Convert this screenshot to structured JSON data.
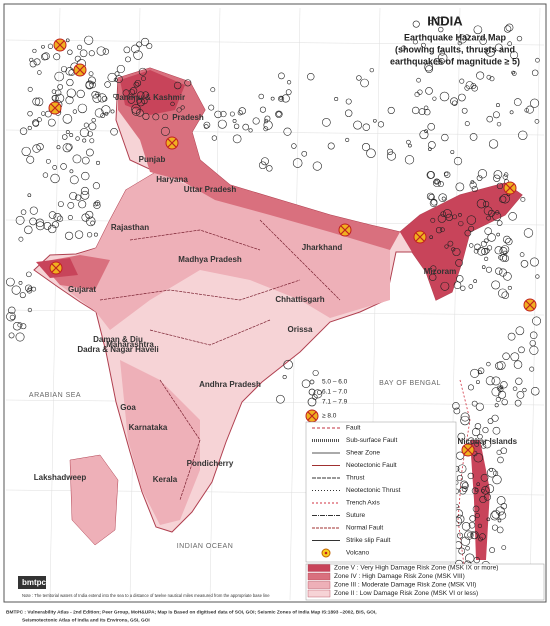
{
  "header": {
    "title": "INDIA",
    "subtitle": [
      "Earthquake Hazard Map",
      "(showing faults, thrusts and",
      "earthquakes of magnitude ≥ 5)"
    ]
  },
  "regions": [
    "Jammu & Kashmir",
    "Pradesh",
    "Punjab",
    "Haryana",
    "Uttar Pradesh",
    "Rajasthan",
    "Gujarat",
    "Madhya Pradesh",
    "Jharkhand",
    "Chhattisgarh",
    "Orissa",
    "Maharashtra",
    "Daman & Diu",
    "Dadra & Nagar Haveli",
    "Goa",
    "Karnataka",
    "Andhra Pradesh",
    "Pondicherry",
    "Kerala",
    "Lakshadweep",
    "Mizoram",
    "Andaman & Nicobar Islands"
  ],
  "seas": [
    "ARABIAN SEA",
    "BAY OF BENGAL",
    "INDIAN OCEAN"
  ],
  "magnitude_legend": [
    "5.0 – 6.0",
    "6.1 – 7.0",
    "7.1 – 7.9",
    "≥ 8.0"
  ],
  "fault_legend": [
    "Fault",
    "Sub-surface Fault",
    "Shear Zone",
    "Neotectonic Fault",
    "Thrust",
    "Neotectonic Thrust",
    "Trench Axis",
    "Suture",
    "Normal Fault",
    "Strike slip Fault",
    "Volcano"
  ],
  "zone_legend": [
    "Zone V : Very High Damage Risk Zone (MSK IX or more)",
    "Zone IV : High Damage Risk Zone (MSK VIII)",
    "Zone III : Moderate Damage Risk Zone (MSK VII)",
    "Zone II : Low Damage Risk Zone (MSK VI or less)"
  ],
  "logo": "bmtpc",
  "note": "Note : The territorial waters of India extend into the sea to a distance of twelve nautical miles measured from the appropriate base line",
  "footer": [
    "BMTPC : Vulnerability Atlas - 2nd Edition; Peer Group, MoH&UPA; Map is Based on digitised data of SOI, GOI; Seismic Zones of India Map IS:1893 –2002, BIS, GOI,",
    "Seismotectonic Atlas of India and its Environs, GSI, GOI"
  ]
}
